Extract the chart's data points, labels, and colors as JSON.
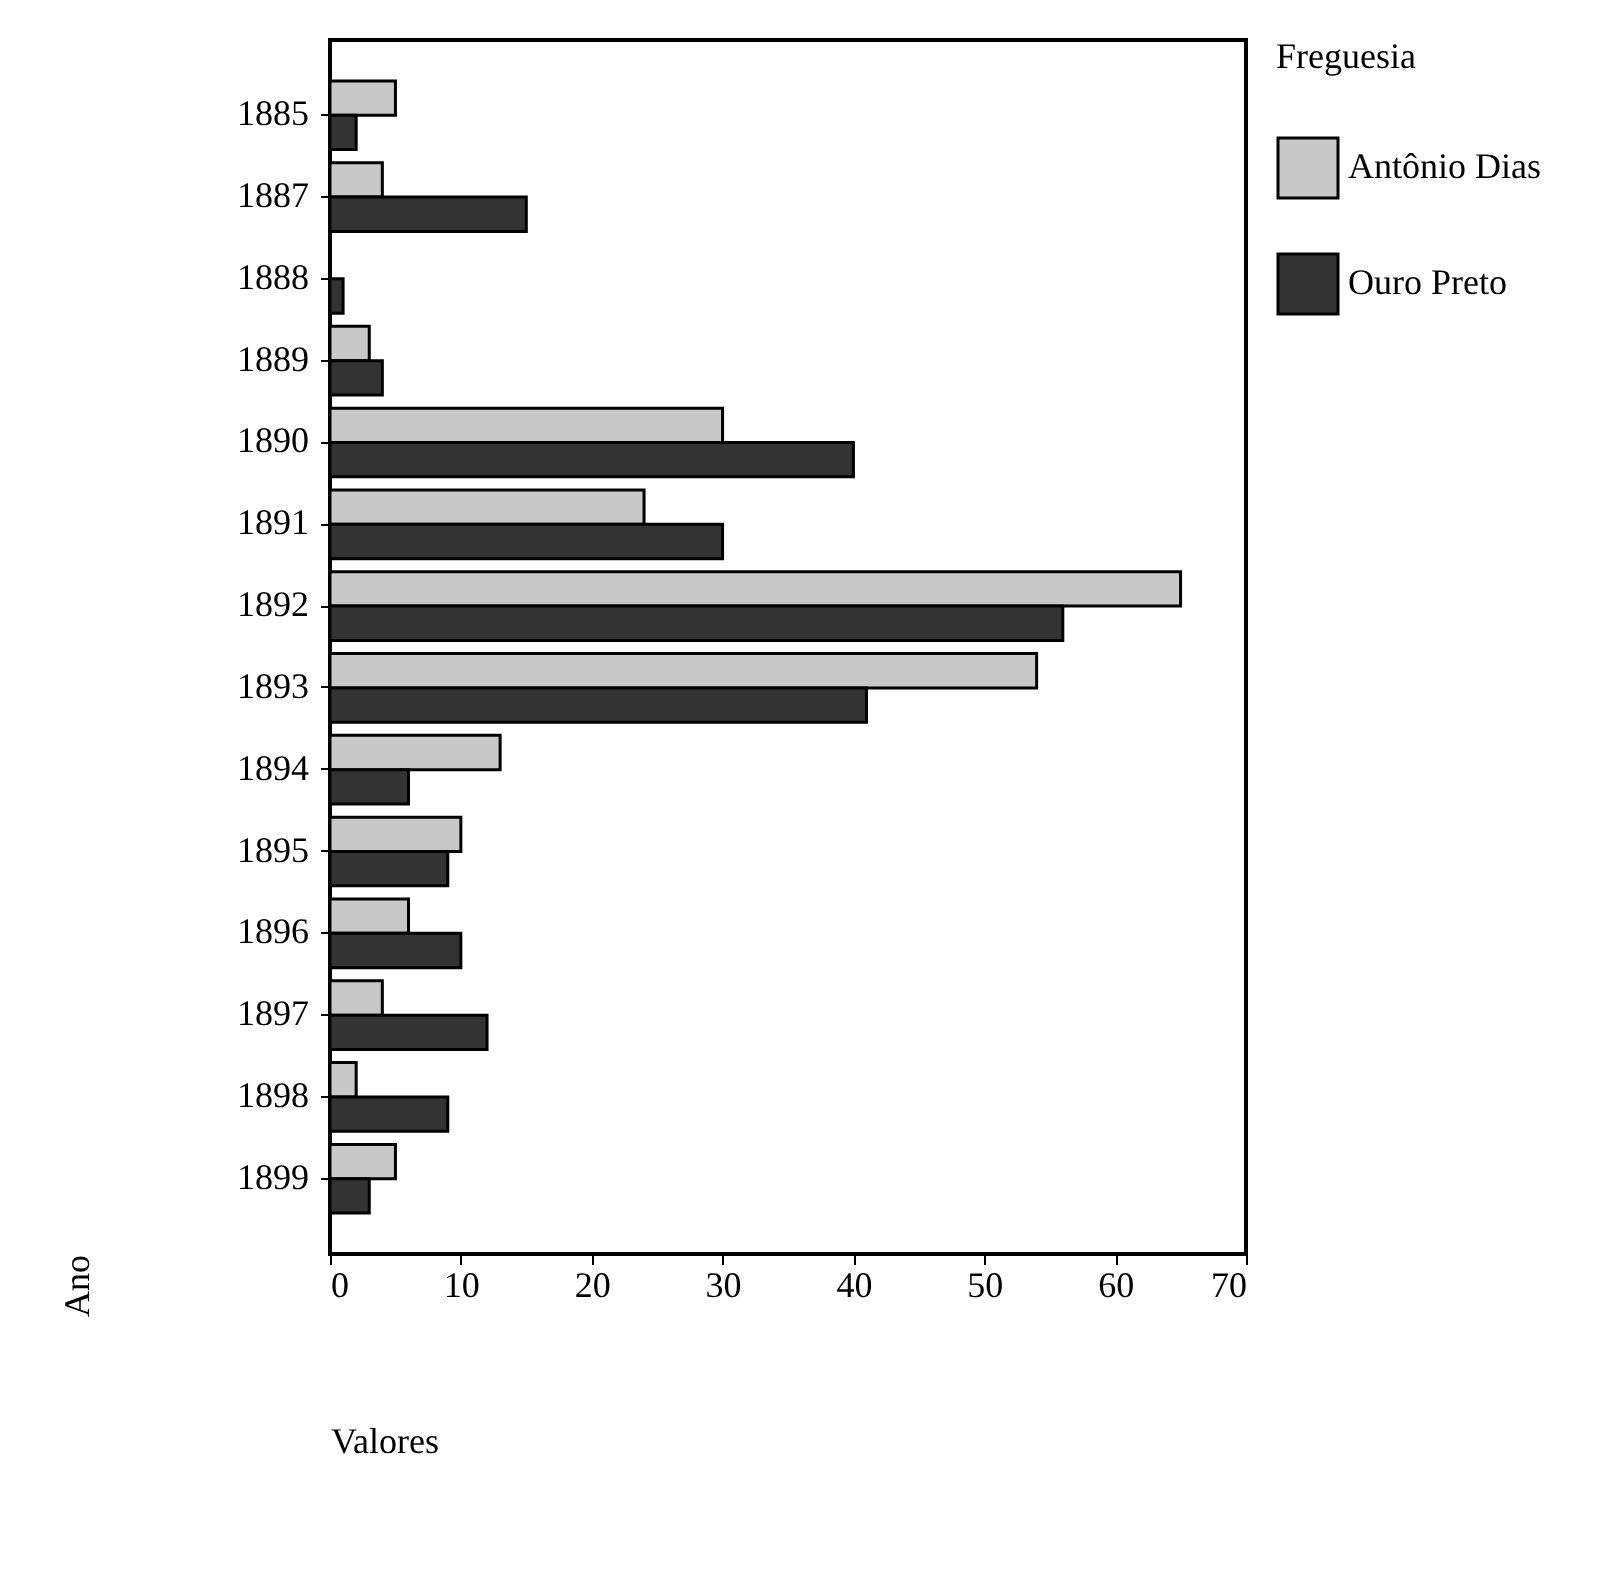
{
  "chart_data": {
    "type": "bar",
    "orientation": "horizontal",
    "xlabel": "Valores",
    "ylabel": "Ano",
    "legend_title": "Freguesia",
    "legend": "right",
    "categories": [
      "1885",
      "1887",
      "1888",
      "1889",
      "1890",
      "1891",
      "1892",
      "1893",
      "1894",
      "1895",
      "1896",
      "1897",
      "1898",
      "1899"
    ],
    "xlim": [
      0,
      70
    ],
    "xticks": [
      0,
      10,
      20,
      30,
      40,
      50,
      60,
      70
    ],
    "grid": false,
    "series": [
      {
        "name": "Antônio Dias",
        "color": "#c8c8c8",
        "values": [
          5,
          4,
          0,
          3,
          30,
          24,
          65,
          54,
          13,
          10,
          6,
          4,
          2,
          5
        ]
      },
      {
        "name": "Ouro Preto",
        "color": "#333333",
        "values": [
          2,
          15,
          1,
          4,
          40,
          30,
          56,
          41,
          6,
          9,
          10,
          12,
          9,
          3
        ]
      }
    ]
  }
}
